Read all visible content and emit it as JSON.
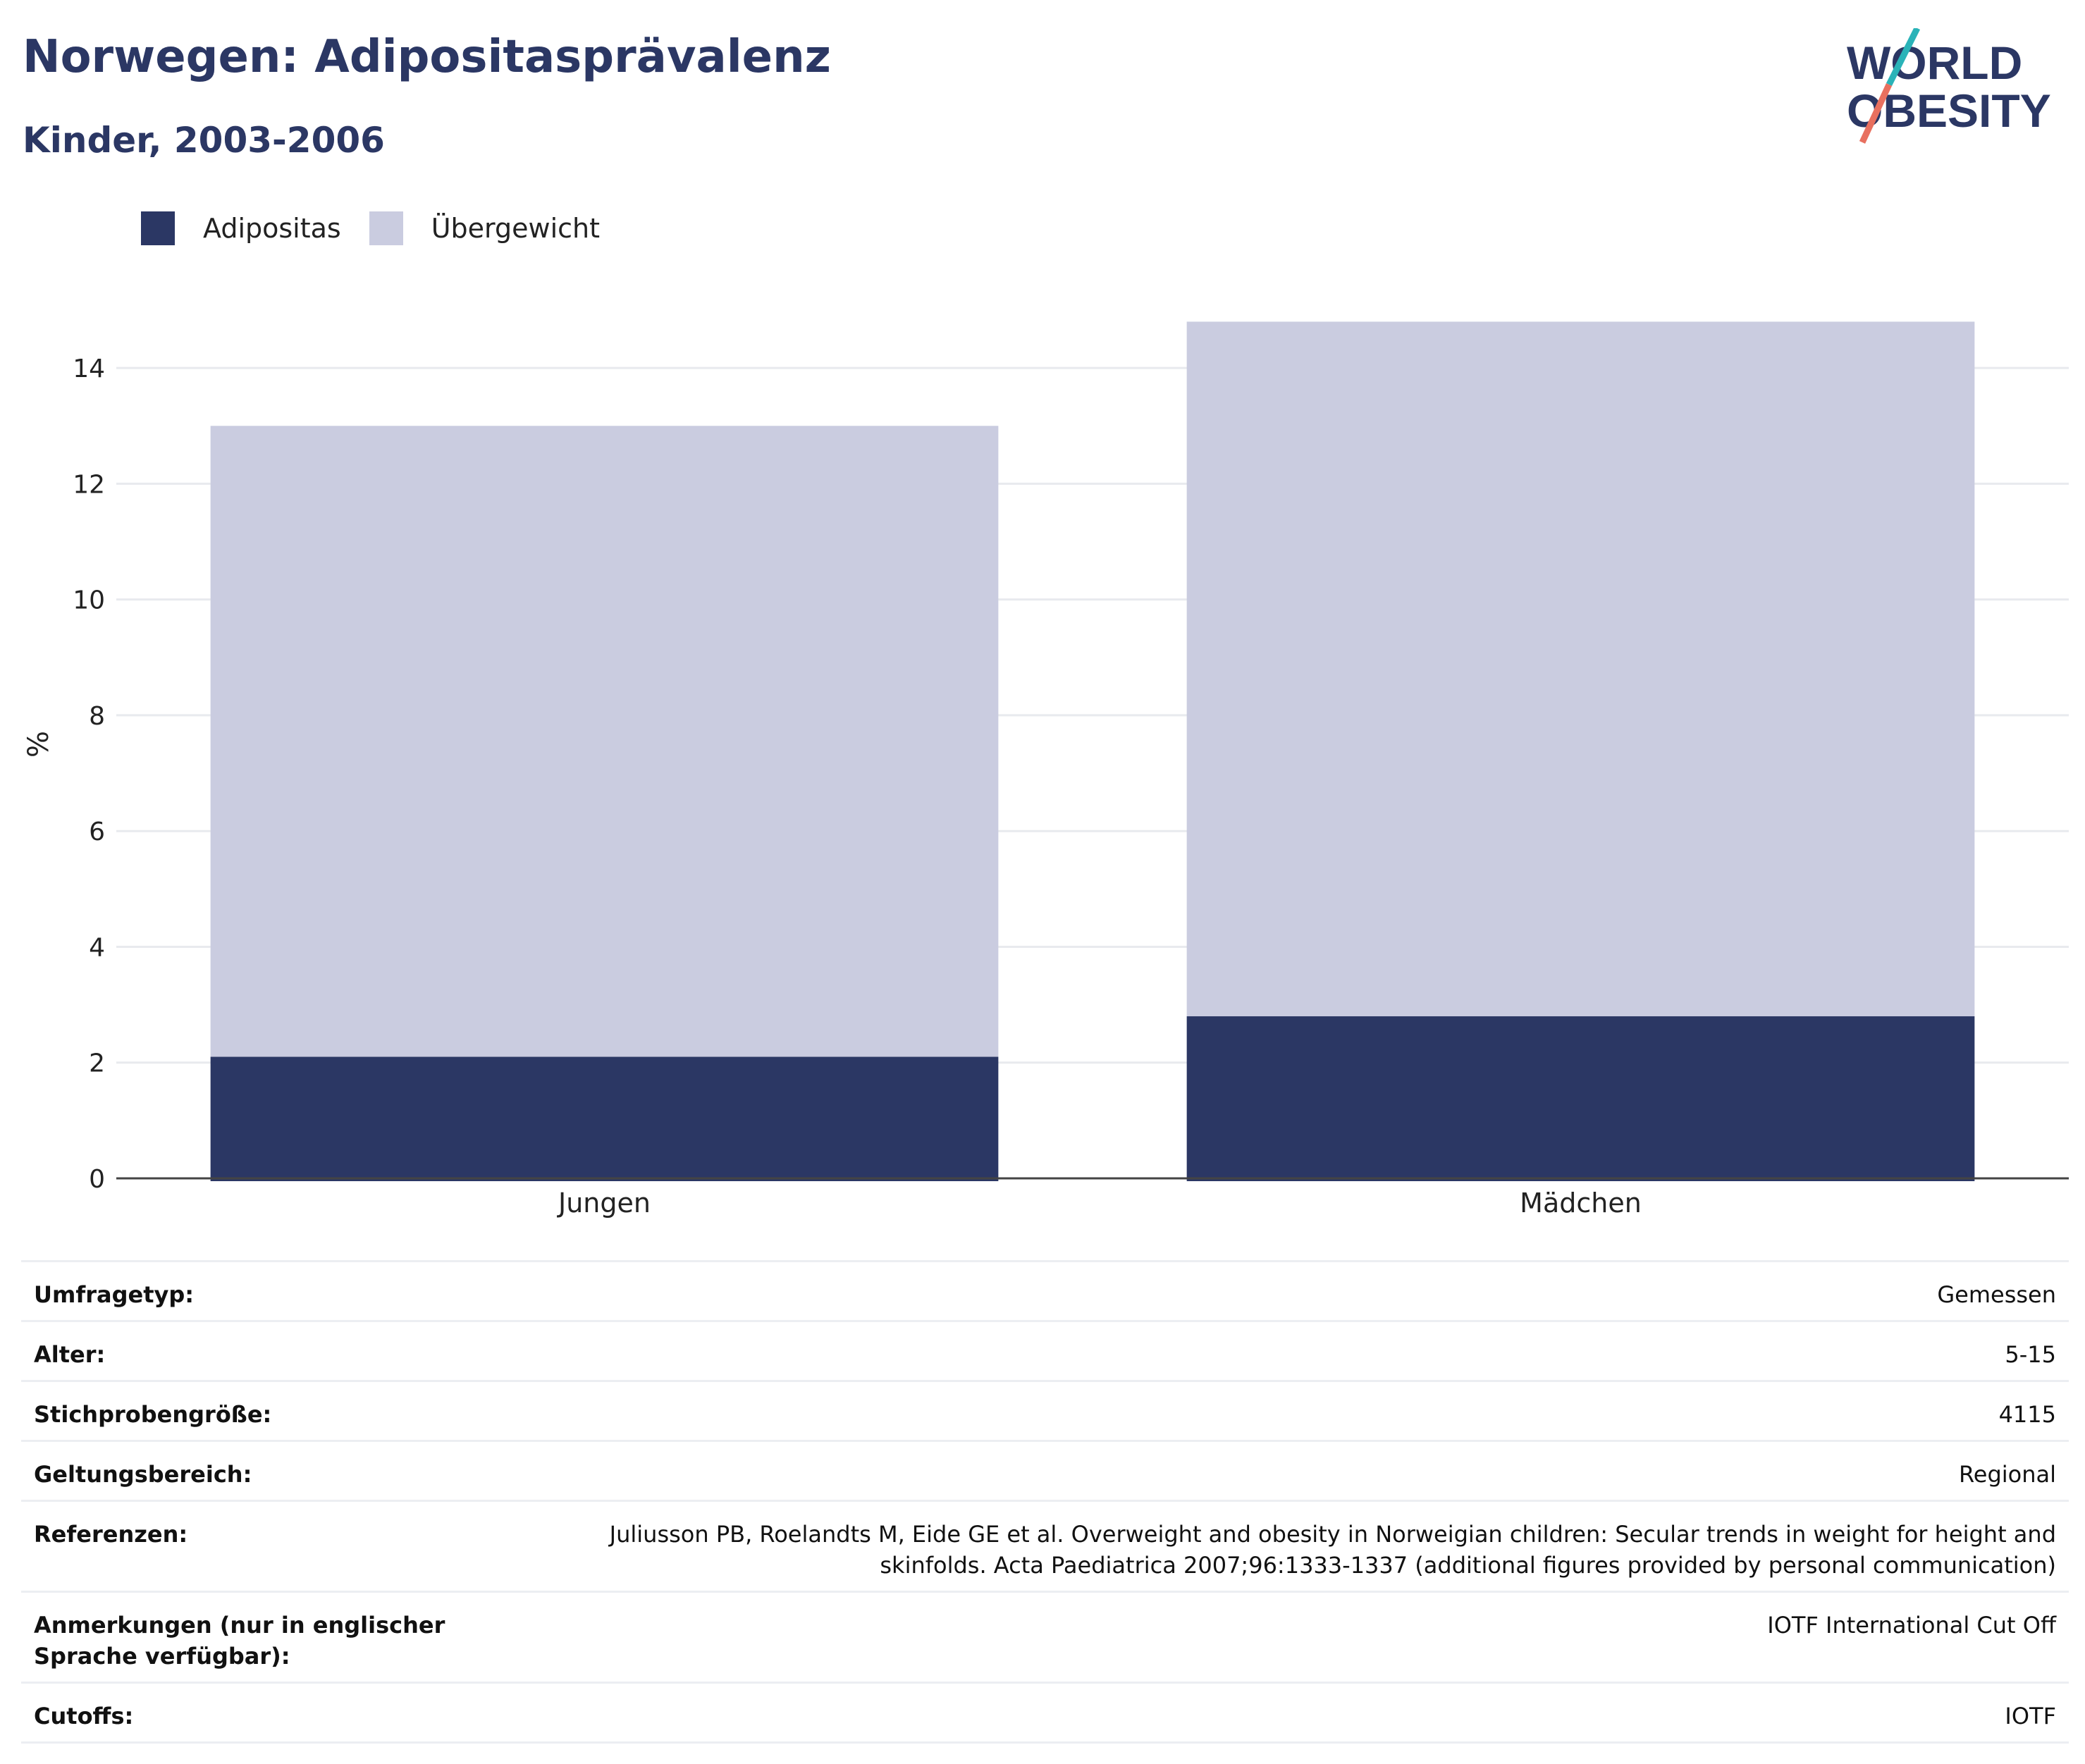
{
  "header": {
    "title": "Norwegen: Adipositasprävalenz",
    "subtitle": "Kinder, 2003-2006"
  },
  "logo": {
    "line1": "WORLD",
    "line2": "OBESITY"
  },
  "colors": {
    "adipositas": "#2b3764",
    "uebergewicht": "#cacce0",
    "title": "#2b3764",
    "logo_teal": "#2ab3b8",
    "logo_coral": "#e8705f"
  },
  "chart_data": {
    "type": "bar",
    "stacked": true,
    "categories": [
      "Jungen",
      "Mädchen"
    ],
    "series": [
      {
        "name": "Adipositas",
        "values": [
          2.1,
          2.8
        ],
        "color": "#2b3764"
      },
      {
        "name": "Übergewicht",
        "values": [
          10.9,
          12.0
        ],
        "color": "#cacce0"
      }
    ],
    "ylabel": "%",
    "ylim": [
      0,
      15
    ],
    "yticks": [
      0,
      2,
      4,
      6,
      8,
      10,
      12,
      14
    ],
    "grid": true,
    "legend": "top-left"
  },
  "info": [
    {
      "key": "Umfragetyp:",
      "value": "Gemessen"
    },
    {
      "key": "Alter:",
      "value": "5-15"
    },
    {
      "key": "Stichprobengröße:",
      "value": "4115"
    },
    {
      "key": "Geltungsbereich:",
      "value": "Regional"
    },
    {
      "key": "Referenzen:",
      "value": "Juliusson PB, Roelandts M, Eide GE et al. Overweight and obesity in Norweigian children: Secular trends in weight for height and skinfolds. Acta Paediatrica 2007;96:1333-1337 (additional figures provided by personal communication)"
    },
    {
      "key": "Anmerkungen (nur in englischer Sprache verfügbar):",
      "value": "IOTF International Cut Off"
    },
    {
      "key": "Cutoffs:",
      "value": "IOTF"
    }
  ]
}
